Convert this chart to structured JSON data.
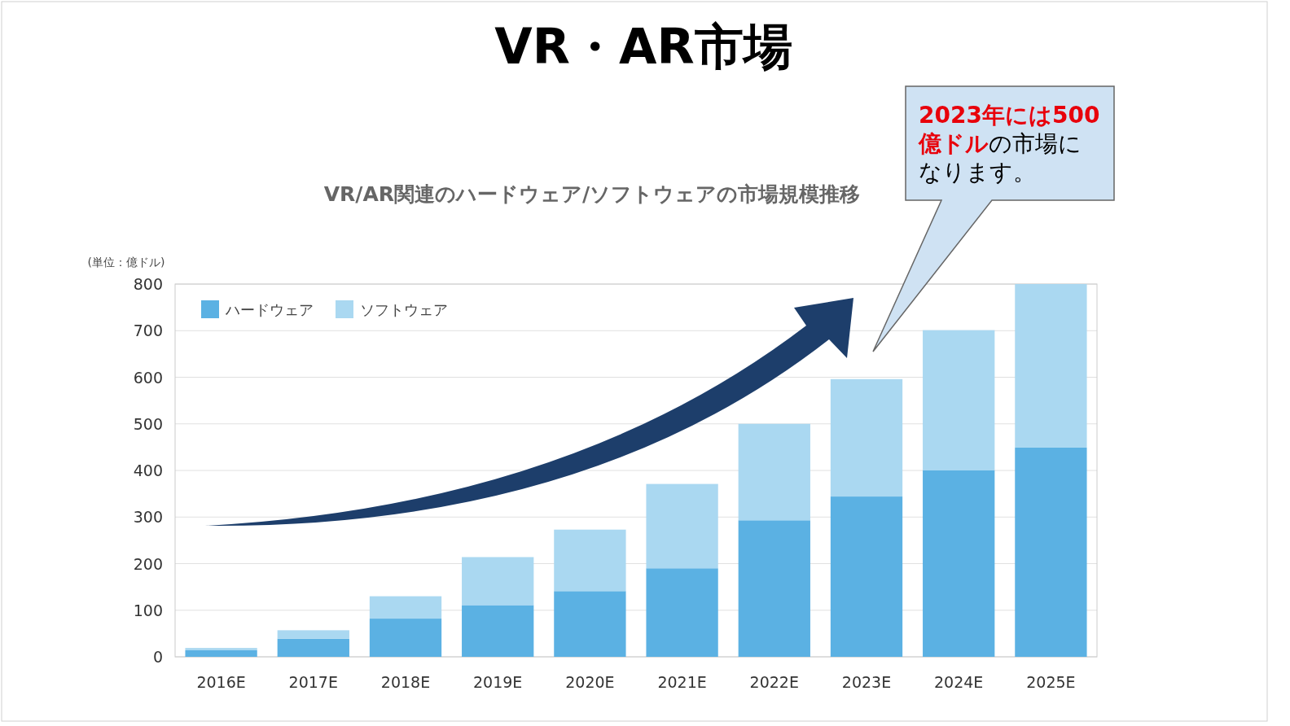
{
  "chart_data": {
    "type": "bar",
    "stacked": true,
    "title": "VR・AR市場",
    "subtitle": "VR/AR関連のハードウェア/ソフトウェアの市場規模推移",
    "ylabel": "(単位：億ドル)",
    "categories": [
      "2016E",
      "2017E",
      "2018E",
      "2019E",
      "2020E",
      "2021E",
      "2022E",
      "2023E",
      "2024E",
      "2025E"
    ],
    "series": [
      {
        "name": "ハードウェア",
        "color": "#5bb1e3",
        "values": [
          14,
          39,
          82,
          111,
          141,
          190,
          293,
          344,
          400,
          449
        ]
      },
      {
        "name": "ソフトウェア",
        "color": "#aad8f1",
        "values": [
          5,
          18,
          48,
          103,
          132,
          181,
          207,
          252,
          301,
          351
        ]
      }
    ],
    "ylim": [
      0,
      800
    ],
    "yticks": [
      0,
      100,
      200,
      300,
      400,
      500,
      600,
      700,
      800
    ],
    "grid": "y",
    "legend": "top left",
    "annotations": [
      "**2023年には500億ドル**の市場になります。"
    ]
  }
}
